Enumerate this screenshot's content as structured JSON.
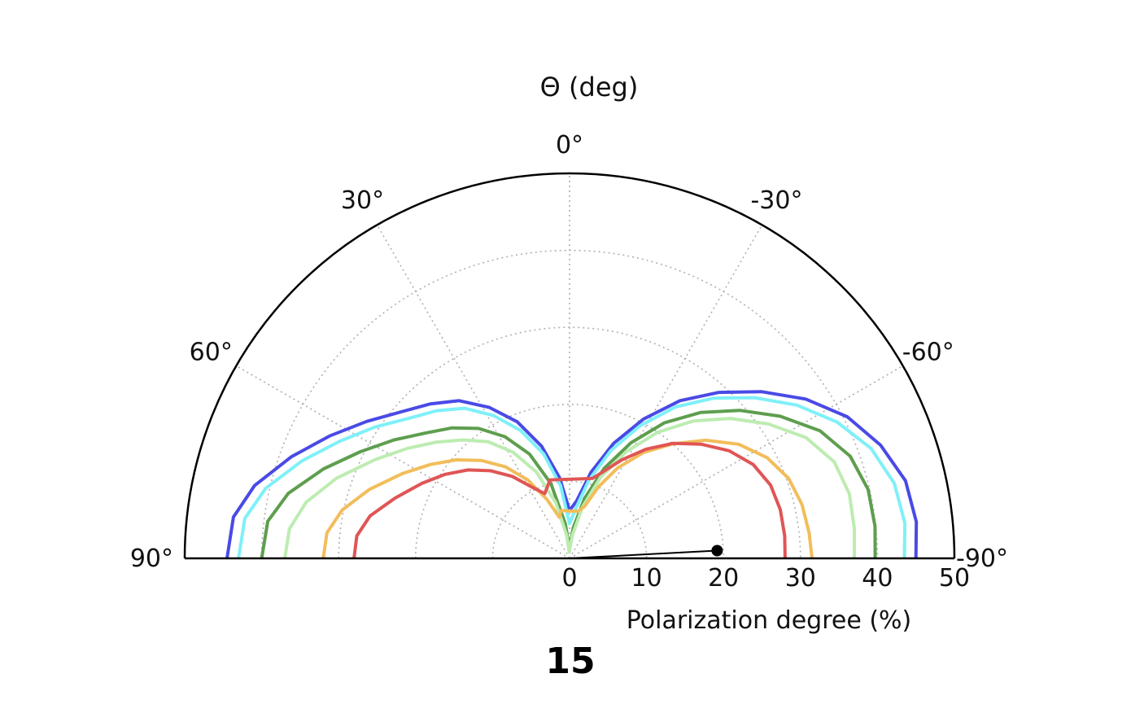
{
  "chart_data": {
    "type": "line",
    "projection": "polar-half",
    "theta_title": "Θ (deg)",
    "xlabel": "Polarization degree (%)",
    "panel_label": "15",
    "r_range": [
      0,
      50
    ],
    "r_ticks": [
      "0",
      "10",
      "20",
      "30",
      "40",
      "50"
    ],
    "theta_range": [
      -90,
      90
    ],
    "theta_ticks": [
      "90°",
      "60°",
      "30°",
      "0°",
      "-30°",
      "-60°",
      "-90°"
    ],
    "grid": true,
    "colors": {
      "blue": "#4a4ae6",
      "cyan": "#7ff0f8",
      "green": "#5e9e4e",
      "lightgreen": "#bdecb1",
      "orange": "#f2bd5a",
      "red": "#e05555",
      "marker": "#000000"
    },
    "series": [
      {
        "color_key": "blue",
        "points": [
          [
            90,
            44.5
          ],
          [
            83,
            44
          ],
          [
            77,
            42
          ],
          [
            70,
            38.5
          ],
          [
            63,
            35
          ],
          [
            56,
            31.8
          ],
          [
            49,
            29
          ],
          [
            42,
            27
          ],
          [
            35,
            25
          ],
          [
            28,
            22.2
          ],
          [
            21,
            19
          ],
          [
            14,
            15
          ],
          [
            7,
            10.5
          ],
          [
            0,
            6.2
          ],
          [
            -7,
            7.5
          ],
          [
            -14,
            11.5
          ],
          [
            -21,
            16
          ],
          [
            -28,
            20.5
          ],
          [
            -35,
            25
          ],
          [
            -42,
            29
          ],
          [
            -49,
            33
          ],
          [
            -56,
            37
          ],
          [
            -63,
            40.5
          ],
          [
            -70,
            43
          ],
          [
            -77,
            44.8
          ],
          [
            -84,
            45.3
          ],
          [
            -90,
            45
          ]
        ]
      },
      {
        "color_key": "cyan",
        "points": [
          [
            90,
            43
          ],
          [
            83,
            42.5
          ],
          [
            77,
            40.5
          ],
          [
            70,
            37
          ],
          [
            63,
            33.5
          ],
          [
            56,
            30.5
          ],
          [
            49,
            27.7
          ],
          [
            42,
            25.8
          ],
          [
            35,
            23.8
          ],
          [
            28,
            21
          ],
          [
            21,
            17.8
          ],
          [
            14,
            14
          ],
          [
            7,
            9.5
          ],
          [
            0,
            4.5
          ],
          [
            -7,
            6.5
          ],
          [
            -14,
            10.5
          ],
          [
            -21,
            15
          ],
          [
            -28,
            19.5
          ],
          [
            -35,
            24
          ],
          [
            -42,
            28
          ],
          [
            -49,
            31.8
          ],
          [
            -56,
            35.6
          ],
          [
            -63,
            39
          ],
          [
            -70,
            41.7
          ],
          [
            -77,
            43.3
          ],
          [
            -84,
            43.8
          ],
          [
            -90,
            43.5
          ]
        ]
      },
      {
        "color_key": "green",
        "points": [
          [
            90,
            40
          ],
          [
            83,
            39.5
          ],
          [
            77,
            37.5
          ],
          [
            70,
            34
          ],
          [
            63,
            30.5
          ],
          [
            56,
            27.5
          ],
          [
            49,
            24.8
          ],
          [
            42,
            22.8
          ],
          [
            35,
            20.6
          ],
          [
            28,
            17.9
          ],
          [
            21,
            14.5
          ],
          [
            14,
            10
          ],
          [
            7,
            4.5
          ],
          [
            0,
            1.3
          ],
          [
            -7,
            4
          ],
          [
            -14,
            8
          ],
          [
            -21,
            12.5
          ],
          [
            -28,
            17
          ],
          [
            -35,
            21.5
          ],
          [
            -42,
            25.5
          ],
          [
            -49,
            29.3
          ],
          [
            -56,
            33
          ],
          [
            -63,
            36.5
          ],
          [
            -70,
            38.8
          ],
          [
            -77,
            39.8
          ],
          [
            -84,
            39.9
          ],
          [
            -90,
            39.7
          ]
        ]
      },
      {
        "color_key": "lightgreen",
        "points": [
          [
            90,
            37
          ],
          [
            84,
            36.6
          ],
          [
            78,
            35
          ],
          [
            71,
            32
          ],
          [
            63,
            28.3
          ],
          [
            56,
            25.5
          ],
          [
            49,
            23
          ],
          [
            42,
            20.7
          ],
          [
            35,
            18.5
          ],
          [
            28,
            15.6
          ],
          [
            21,
            12
          ],
          [
            14,
            7.5
          ],
          [
            7,
            3
          ],
          [
            3,
            0.8
          ],
          [
            -7,
            3
          ],
          [
            -14,
            6.8
          ],
          [
            -21,
            11.3
          ],
          [
            -28,
            15.7
          ],
          [
            -35,
            20
          ],
          [
            -42,
            24
          ],
          [
            -49,
            27.7
          ],
          [
            -56,
            31.2
          ],
          [
            -63,
            34.5
          ],
          [
            -70,
            36.6
          ],
          [
            -77,
            37.3
          ],
          [
            -84,
            37.2
          ],
          [
            -90,
            37
          ]
        ]
      },
      {
        "color_key": "orange",
        "points": [
          [
            90,
            32
          ],
          [
            84,
            31.7
          ],
          [
            78,
            30.2
          ],
          [
            71,
            27.5
          ],
          [
            63,
            24.3
          ],
          [
            56,
            21.8
          ],
          [
            49,
            19.5
          ],
          [
            42,
            17.1
          ],
          [
            35,
            14.5
          ],
          [
            28,
            11.5
          ],
          [
            21,
            8.2
          ],
          [
            14,
            5.5
          ],
          [
            10,
            6.3
          ],
          [
            -10,
            6.2
          ],
          [
            -16,
            7
          ],
          [
            -22,
            10
          ],
          [
            -28,
            13.3
          ],
          [
            -35,
            16.8
          ],
          [
            -42,
            20
          ],
          [
            -49,
            23.4
          ],
          [
            -56,
            26.5
          ],
          [
            -63,
            28.8
          ],
          [
            -70,
            30.3
          ],
          [
            -77,
            31
          ],
          [
            -84,
            31.3
          ],
          [
            -90,
            31.5
          ]
        ]
      },
      {
        "color_key": "red",
        "points": [
          [
            90,
            28
          ],
          [
            84,
            27.8
          ],
          [
            78,
            26.5
          ],
          [
            71,
            24
          ],
          [
            63,
            21.5
          ],
          [
            56,
            19.5
          ],
          [
            49,
            17.5
          ],
          [
            42,
            15.3
          ],
          [
            35,
            13
          ],
          [
            28,
            10.5
          ],
          [
            21,
            9
          ],
          [
            14,
            10.5
          ],
          [
            -10,
            10.5
          ],
          [
            -16,
            10.8
          ],
          [
            -22,
            12.3
          ],
          [
            -28,
            14.5
          ],
          [
            -35,
            17.3
          ],
          [
            -42,
            20.1
          ],
          [
            -49,
            22.6
          ],
          [
            -56,
            25
          ],
          [
            -63,
            26.8
          ],
          [
            -70,
            27.8
          ],
          [
            -77,
            28.1
          ],
          [
            -84,
            28.1
          ],
          [
            -90,
            28
          ]
        ]
      }
    ],
    "marker": {
      "theta": -87,
      "r": 19.2
    }
  }
}
